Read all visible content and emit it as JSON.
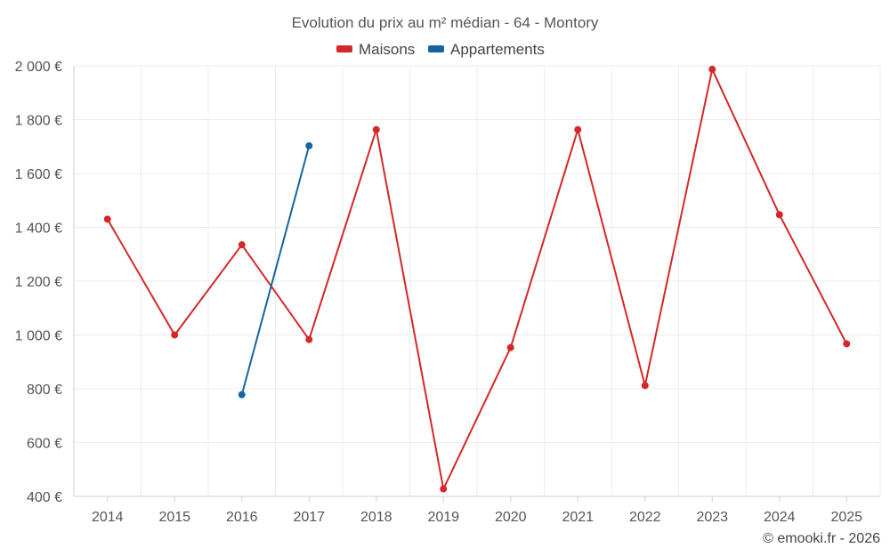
{
  "chart_data": {
    "type": "line",
    "title": "Evolution du prix au m² médian - 64 - Montory",
    "categories": [
      "2014",
      "2015",
      "2016",
      "2017",
      "2018",
      "2019",
      "2020",
      "2021",
      "2022",
      "2023",
      "2024",
      "2025"
    ],
    "yticks": [
      "2 000 €",
      "1 800 €",
      "1 600 €",
      "1 400 €",
      "1 200 €",
      "1 000 €",
      "800 €",
      "600 €",
      "400 €"
    ],
    "ytick_values": [
      2000,
      1800,
      1600,
      1400,
      1200,
      1000,
      800,
      600,
      400
    ],
    "ylim": [
      400,
      2000
    ],
    "grid": true,
    "legend_position": "top-center",
    "series": [
      {
        "name": "Maisons",
        "color": "#d62728",
        "values": [
          1430,
          1000,
          1335,
          983,
          1763,
          428,
          953,
          1763,
          812,
          1987,
          1447,
          967
        ]
      },
      {
        "name": "Appartements",
        "color": "#1565a0",
        "values": [
          null,
          null,
          778,
          1703,
          null,
          null,
          null,
          null,
          null,
          null,
          null,
          null
        ]
      }
    ],
    "credit": "© emooki.fr - 2026"
  }
}
